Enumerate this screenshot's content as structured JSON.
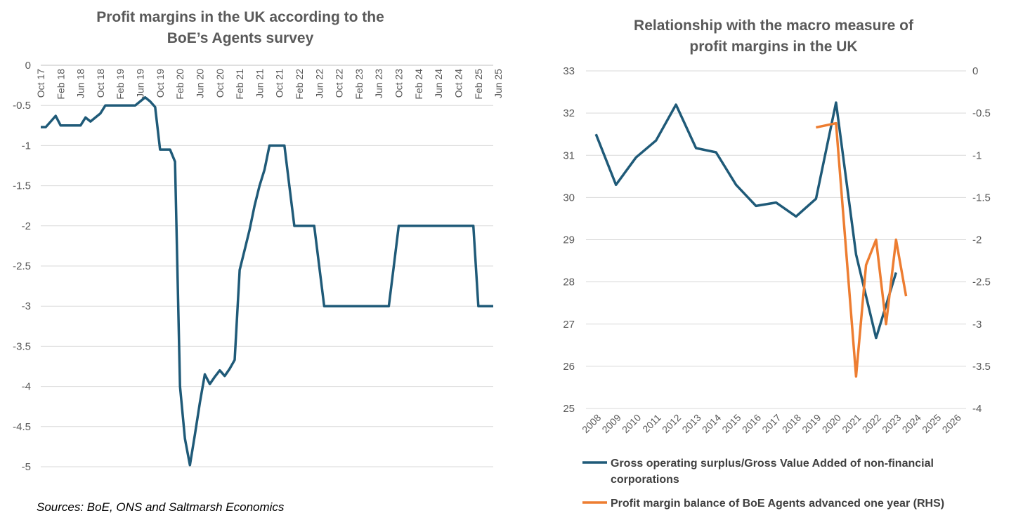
{
  "chart_data": [
    {
      "type": "line",
      "title_lines": [
        "Profit margins in the UK according to the",
        "BoE’s Agents survey"
      ],
      "ylim": [
        -5,
        0
      ],
      "yticks": [
        0,
        -0.5,
        -1,
        -1.5,
        -2,
        -2.5,
        -3,
        -3.5,
        -4,
        -4.5,
        -5
      ],
      "ytick_labels": [
        "0",
        "-0.5",
        "-1",
        "-1.5",
        "-2",
        "-2.5",
        "-3",
        "-3.5",
        "-4",
        "-4.5",
        "-5"
      ],
      "x_start": "Oct 17",
      "x_tick_labels": [
        "Oct 17",
        "Feb 18",
        "Jun 18",
        "Oct 18",
        "Feb 19",
        "Jun 19",
        "Oct 19",
        "Feb 20",
        "Jun 20",
        "Oct 20",
        "Feb 21",
        "Jun 21",
        "Oct 21",
        "Feb 22",
        "Jun 22",
        "Oct 22",
        "Feb 23",
        "Jun 23",
        "Oct 23",
        "Feb 24",
        "Jun 24",
        "Oct 24",
        "Feb 25",
        "Jun 25"
      ],
      "x_tick_step_months": 4,
      "color": "#1f5a78",
      "series": [
        {
          "name": "BoE Agents profit margin score",
          "values": [
            -0.77,
            -0.77,
            -0.7,
            -0.63,
            -0.75,
            -0.75,
            -0.75,
            -0.75,
            -0.75,
            -0.65,
            -0.7,
            -0.65,
            -0.6,
            -0.5,
            -0.5,
            -0.5,
            -0.5,
            -0.5,
            -0.5,
            -0.5,
            -0.45,
            -0.4,
            -0.45,
            -0.52,
            -1.05,
            -1.05,
            -1.05,
            -1.2,
            -4.0,
            -4.65,
            -4.98,
            -4.6,
            -4.2,
            -3.85,
            -3.97,
            -3.88,
            -3.8,
            -3.87,
            -3.78,
            -3.67,
            -2.55,
            -2.3,
            -2.05,
            -1.75,
            -1.5,
            -1.3,
            -1.0,
            -1.0,
            -1.0,
            -1.0,
            -1.5,
            -2.0,
            -2.0,
            -2.0,
            -2.0,
            -2.0,
            -2.5,
            -3.0,
            -3.0,
            -3.0,
            -3.0,
            -3.0,
            -3.0,
            -3.0,
            -3.0,
            -3.0,
            -3.0,
            -3.0,
            -3.0,
            -3.0,
            -3.0,
            -2.5,
            -2.0,
            -2.0,
            -2.0,
            -2.0,
            -2.0,
            -2.0,
            -2.0,
            -2.0,
            -2.0,
            -2.0,
            -2.0,
            -2.0,
            -2.0,
            -2.0,
            -2.0,
            -2.0,
            -3.0,
            -3.0,
            -3.0,
            -3.0
          ]
        }
      ]
    },
    {
      "type": "line",
      "title_lines": [
        "Relationship with the macro measure of",
        "profit margins in the UK"
      ],
      "categories": [
        "2008",
        "2009",
        "2010",
        "2011",
        "2012",
        "2013",
        "2014",
        "2015",
        "2016",
        "2017",
        "2018",
        "2019",
        "2020",
        "2021",
        "2022",
        "2023",
        "2024",
        "2025",
        "2026"
      ],
      "ylim_left": [
        25,
        33
      ],
      "yticks_left_labels": [
        "25",
        "26",
        "27",
        "28",
        "29",
        "30",
        "31",
        "32",
        "33"
      ],
      "ylim_right": [
        -4,
        0
      ],
      "yticks_right_labels": [
        "0",
        "-0.5",
        "-1",
        "-1.5",
        "-2",
        "-2.5",
        "-3",
        "-3.5",
        "-4"
      ],
      "series": [
        {
          "name": "Gross operating surplus/Gross Value Added of non-financial corporations",
          "axis": "left",
          "color": "#1f5a78",
          "values": [
            31.5,
            30.3,
            30.95,
            31.35,
            32.2,
            31.17,
            31.07,
            30.3,
            29.8,
            29.88,
            29.55,
            29.97,
            32.25,
            28.65,
            26.67,
            28.22,
            null,
            null,
            null
          ]
        },
        {
          "name": "Profit margin balance of BoE Agents advanced one year (RHS)",
          "axis": "right",
          "color": "#ed7d31",
          "points": [
            {
              "x": 11.0,
              "y": -0.67
            },
            {
              "x": 12.0,
              "y": -0.62
            },
            {
              "x": 13.0,
              "y": -3.62
            },
            {
              "x": 13.5,
              "y": -2.3
            },
            {
              "x": 14.0,
              "y": -2.0
            },
            {
              "x": 14.5,
              "y": -3.0
            },
            {
              "x": 15.0,
              "y": -2.0
            },
            {
              "x": 15.5,
              "y": -2.67
            }
          ]
        }
      ],
      "legend": [
        {
          "label_lines": [
            "Gross operating surplus/Gross Value Added of non-financial",
            "corporations"
          ],
          "color": "#1f5a78"
        },
        {
          "label_lines": [
            "Profit margin balance of BoE Agents advanced one year (RHS)"
          ],
          "color": "#ed7d31"
        }
      ]
    }
  ],
  "source": "Sources: BoE, ONS and Saltmarsh Economics"
}
